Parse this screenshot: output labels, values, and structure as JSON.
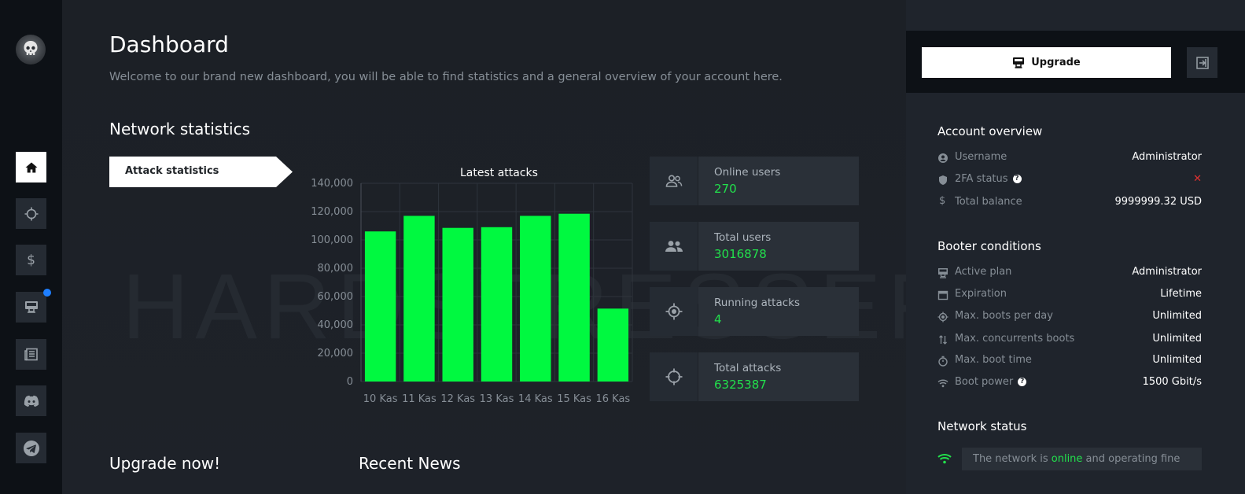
{
  "sidebar": {
    "items": [
      {
        "name": "home",
        "icon": "home-icon",
        "active": true
      },
      {
        "name": "attacks",
        "icon": "crosshair-icon",
        "active": false
      },
      {
        "name": "billing",
        "icon": "dollar-icon",
        "active": false
      },
      {
        "name": "plans",
        "icon": "monitor-icon",
        "active": false,
        "badge_color": "#1e7fff"
      },
      {
        "name": "news",
        "icon": "newspaper-icon",
        "active": false
      },
      {
        "name": "discord",
        "icon": "discord-icon",
        "active": false
      },
      {
        "name": "telegram",
        "icon": "telegram-icon",
        "active": false
      }
    ]
  },
  "header": {
    "title": "Dashboard",
    "subtitle": "Welcome to our brand new dashboard, you will be able to find statistics and a general overview of your account here."
  },
  "watermark": "HARDSTRESSER",
  "network_statistics": {
    "title": "Network statistics",
    "tab_label": "Attack statistics"
  },
  "chart_data": {
    "type": "bar",
    "title": "Latest attacks",
    "categories": [
      "10 Kas",
      "11 Kas",
      "12 Kas",
      "13 Kas",
      "14 Kas",
      "15 Kas",
      "16 Kas"
    ],
    "values": [
      106000,
      117000,
      108500,
      109000,
      117000,
      118500,
      51500
    ],
    "ylim": [
      0,
      140000
    ],
    "yticks": [
      "0",
      "20,000",
      "40,000",
      "60,000",
      "80,000",
      "100,000",
      "120,000",
      "140,000"
    ],
    "bar_color": "#00f940",
    "grid": true
  },
  "stats": [
    {
      "label": "Online users",
      "value": "270",
      "icon": "users-icon"
    },
    {
      "label": "Total users",
      "value": "3016878",
      "icon": "group-icon"
    },
    {
      "label": "Running attacks",
      "value": "4",
      "icon": "target-icon"
    },
    {
      "label": "Total attacks",
      "value": "6325387",
      "icon": "crosshair-icon"
    }
  ],
  "bottom": {
    "upgrade_title": "Upgrade now!",
    "news_title": "Recent News"
  },
  "right": {
    "upgrade_label": "Upgrade",
    "account_title": "Account overview",
    "account": [
      {
        "label": "Username",
        "value": "Administrator",
        "icon": "user-circle-icon",
        "help": false
      },
      {
        "label": "2FA status",
        "value": "✕",
        "icon": "shield-icon",
        "help": true,
        "value_color": "#e03131"
      },
      {
        "label": "Total balance",
        "value": "9999999.32 USD",
        "icon": "dollar-icon",
        "help": false
      }
    ],
    "booter_title": "Booter conditions",
    "booter": [
      {
        "label": "Active plan",
        "value": "Administrator",
        "icon": "monitor-icon",
        "help": false
      },
      {
        "label": "Expiration",
        "value": "Lifetime",
        "icon": "calendar-icon",
        "help": false
      },
      {
        "label": "Max. boots per day",
        "value": "Unlimited",
        "icon": "target-icon",
        "help": false
      },
      {
        "label": "Max. concurrents boots",
        "value": "Unlimited",
        "icon": "arrows-icon",
        "help": false
      },
      {
        "label": "Max. boot time",
        "value": "Unlimited",
        "icon": "stopwatch-icon",
        "help": false
      },
      {
        "label": "Boot power",
        "value": "1500 Gbit/s",
        "icon": "wifi-icon",
        "help": true
      }
    ],
    "network_title": "Network status",
    "network_prefix": "The network is ",
    "network_state": "online",
    "network_suffix": " and operating fine"
  }
}
